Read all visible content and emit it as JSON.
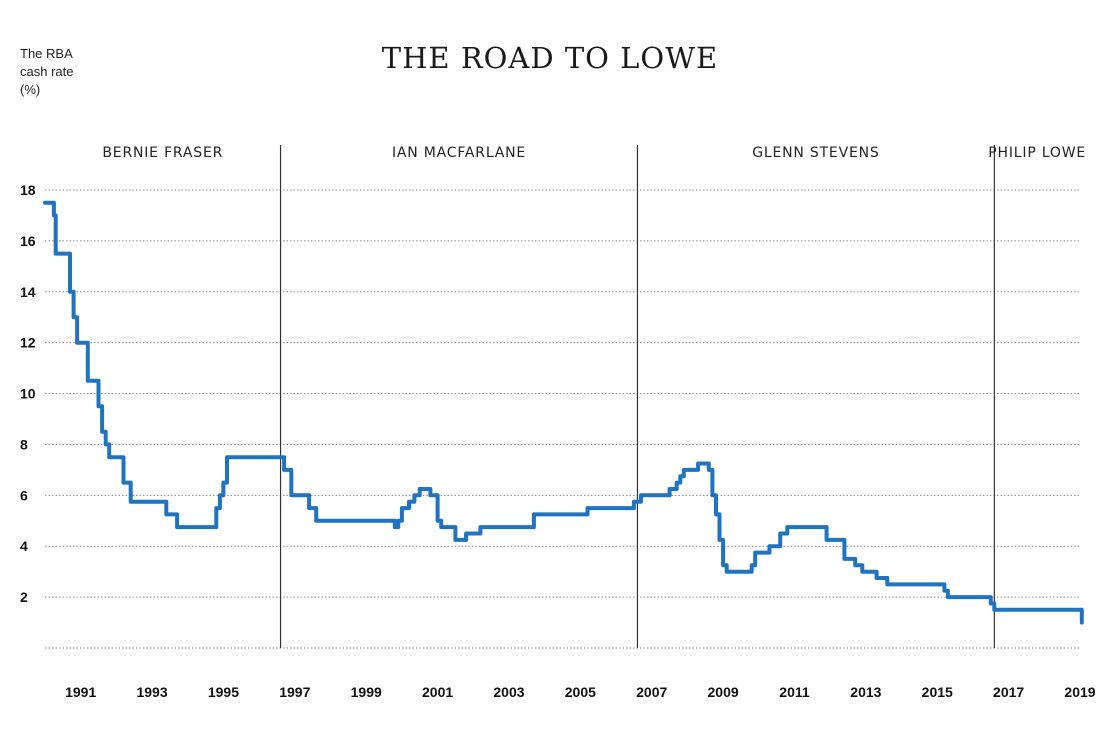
{
  "chart_data": {
    "type": "line",
    "title": "THE ROAD TO LOWE",
    "ylabel_lines": [
      "The RBA",
      "cash rate",
      "(%)"
    ],
    "ylim": [
      0,
      18
    ],
    "yticks": [
      2,
      4,
      6,
      8,
      10,
      12,
      14,
      16,
      18
    ],
    "xlim": [
      1990.0,
      2019.0
    ],
    "xticks": [
      1991,
      1993,
      1995,
      1997,
      1999,
      2001,
      2003,
      2005,
      2007,
      2009,
      2011,
      2013,
      2015,
      2017,
      2019
    ],
    "grid": true,
    "eras": [
      {
        "name": "BERNIE FRASER",
        "start": 1990.0,
        "end": 1996.6
      },
      {
        "name": "IAN MACFARLANE",
        "start": 1996.6,
        "end": 2006.6
      },
      {
        "name": "GLENN STEVENS",
        "start": 2006.6,
        "end": 2016.6
      },
      {
        "name": "PHILIP LOWE",
        "start": 2016.6,
        "end": 2019.0
      }
    ],
    "series": [
      {
        "color": "#1f73c0",
        "x": [
          1990.0,
          1990.2,
          1990.25,
          1990.3,
          1990.6,
          1990.7,
          1990.8,
          1990.9,
          1991.0,
          1991.2,
          1991.4,
          1991.5,
          1991.6,
          1991.7,
          1991.8,
          1992.1,
          1992.2,
          1992.4,
          1993.0,
          1993.4,
          1993.7,
          1994.7,
          1994.8,
          1994.9,
          1995.0,
          1995.1,
          1996.6,
          1996.7,
          1996.9,
          1997.3,
          1997.4,
          1997.6,
          1998.9,
          1999.8,
          1999.9,
          2000.0,
          2000.2,
          2000.35,
          2000.5,
          2000.6,
          2000.8,
          2001.0,
          2001.1,
          2001.5,
          2001.7,
          2001.8,
          2002.2,
          2002.4,
          2003.5,
          2003.7,
          2005.0,
          2005.2,
          2006.3,
          2006.5,
          2006.7,
          2007.5,
          2007.7,
          2007.8,
          2007.9,
          2008.3,
          2008.6,
          2008.7,
          2008.8,
          2008.9,
          2009.0,
          2009.1,
          2009.7,
          2009.8,
          2009.9,
          2010.2,
          2010.3,
          2010.6,
          2010.8,
          2011.7,
          2011.9,
          2012.2,
          2012.4,
          2012.7,
          2012.9,
          2013.3,
          2013.6,
          2015.0,
          2015.2,
          2015.3,
          2016.3,
          2016.5,
          2016.6,
          2019.0,
          2019.05
        ],
        "values": [
          17.5,
          17.5,
          17.0,
          15.5,
          15.5,
          14.0,
          13.0,
          12.0,
          12.0,
          10.5,
          10.5,
          9.5,
          8.5,
          8.0,
          7.5,
          7.5,
          6.5,
          5.75,
          5.75,
          5.25,
          4.75,
          4.75,
          5.5,
          6.0,
          6.5,
          7.5,
          7.5,
          7.0,
          6.0,
          6.0,
          5.5,
          5.0,
          5.0,
          4.75,
          5.0,
          5.5,
          5.75,
          6.0,
          6.25,
          6.25,
          6.0,
          5.0,
          4.75,
          4.25,
          4.25,
          4.5,
          4.75,
          4.75,
          4.75,
          5.25,
          5.25,
          5.5,
          5.5,
          5.75,
          6.0,
          6.25,
          6.5,
          6.75,
          7.0,
          7.25,
          7.0,
          6.0,
          5.25,
          4.25,
          3.25,
          3.0,
          3.0,
          3.25,
          3.75,
          3.75,
          4.0,
          4.5,
          4.75,
          4.75,
          4.25,
          4.25,
          3.5,
          3.25,
          3.0,
          2.75,
          2.5,
          2.5,
          2.25,
          2.0,
          2.0,
          1.75,
          1.5,
          1.5,
          1.0
        ]
      }
    ]
  }
}
